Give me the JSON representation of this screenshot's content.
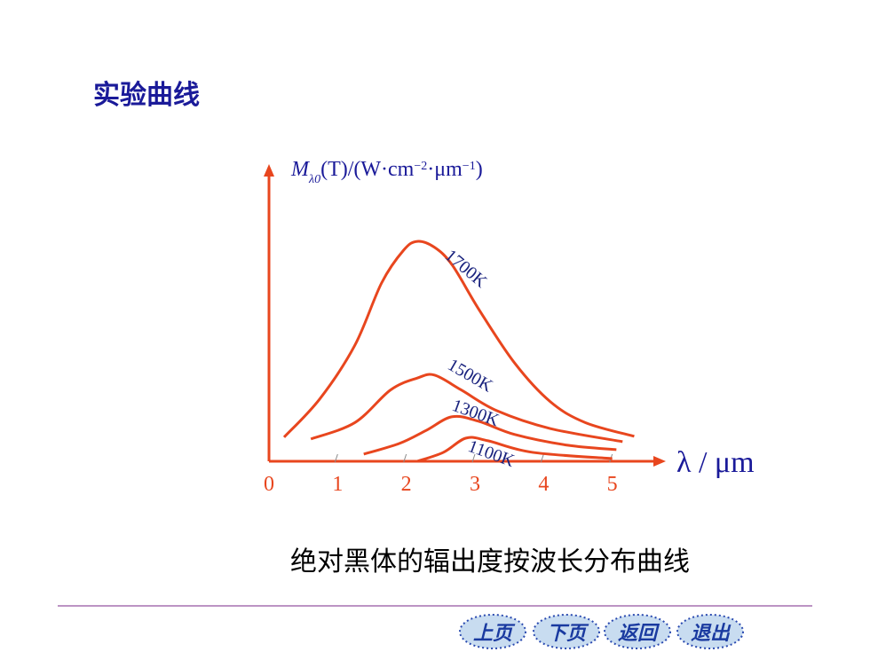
{
  "header": {
    "title": "实验曲线"
  },
  "chart_data": {
    "type": "line",
    "ylabel": [
      "M",
      "λ0",
      "(T)/(W·cm",
      "−2",
      "·μm",
      "−1",
      ")"
    ],
    "xlabel": "λ / μm",
    "xlim": [
      0,
      5.78
    ],
    "ylim": [
      0,
      100
    ],
    "xticks": [
      0,
      1,
      2,
      3,
      4,
      5
    ],
    "axis_color": "#e8461e",
    "series": [
      {
        "name": "1700K",
        "color": "#e8461e",
        "x": [
          0.22,
          0.74,
          1.25,
          1.64,
          1.96,
          2.16,
          2.41,
          2.67,
          3.06,
          3.58,
          4.1,
          4.61,
          5.32
        ],
        "values": [
          8.1,
          21,
          39,
          60,
          71,
          74,
          72,
          66,
          51,
          33,
          20,
          13,
          8.4
        ]
      },
      {
        "name": "1500K",
        "color": "#e8461e",
        "x": [
          0.61,
          1.25,
          1.77,
          2.16,
          2.41,
          2.8,
          3.32,
          4.1,
          5.15
        ],
        "values": [
          7.5,
          13,
          24,
          28,
          29,
          24,
          17,
          11,
          6.6
        ]
      },
      {
        "name": "1300K",
        "color": "#e8461e",
        "x": [
          1.38,
          1.9,
          2.29,
          2.67,
          3.06,
          3.58,
          4.35,
          5.06
        ],
        "values": [
          2.4,
          6,
          10.4,
          15,
          13.4,
          9,
          5.4,
          3.9
        ]
      },
      {
        "name": "1100K",
        "color": "#e8461e",
        "x": [
          2.16,
          2.54,
          2.87,
          3.19,
          3.84,
          5
        ],
        "values": [
          0,
          3,
          7.8,
          6.9,
          3,
          0.9
        ]
      }
    ]
  },
  "caption": "绝对黑体的辐出度按波长分布曲线",
  "nav": [
    "上页",
    "下页",
    "返回",
    "退出"
  ]
}
